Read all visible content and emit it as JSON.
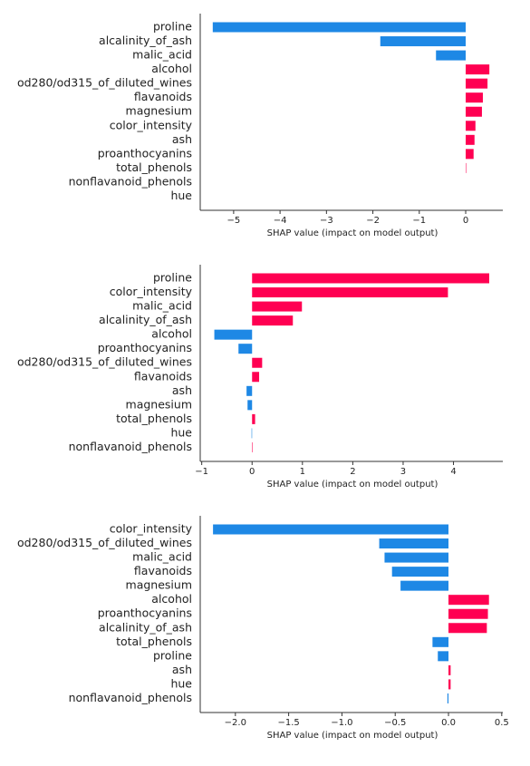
{
  "chart_data": [
    {
      "type": "bar",
      "orientation": "horizontal",
      "xlabel": "SHAP value (impact on model output)",
      "positive_color": "#ff0052",
      "negative_color": "#1e88e5",
      "categories": [
        "proline",
        "alcalinity_of_ash",
        "malic_acid",
        "alcohol",
        "od280/od315_of_diluted_wines",
        "flavanoids",
        "magnesium",
        "color_intensity",
        "ash",
        "proanthocyanins",
        "total_phenols",
        "nonflavanoid_phenols",
        "hue"
      ],
      "values": [
        -5.45,
        -1.84,
        -0.64,
        0.51,
        0.47,
        0.37,
        0.35,
        0.21,
        0.19,
        0.17,
        0.01,
        0,
        0
      ],
      "xlim": [
        -5.72,
        0.8
      ],
      "xticks": [
        {
          "value": -5,
          "label": "−5"
        },
        {
          "value": -4,
          "label": "−4"
        },
        {
          "value": -3,
          "label": "−3"
        },
        {
          "value": -2,
          "label": "−2"
        },
        {
          "value": -1,
          "label": "−1"
        },
        0
      ]
    },
    {
      "type": "bar",
      "orientation": "horizontal",
      "xlabel": "SHAP value (impact on model output)",
      "positive_color": "#ff0052",
      "negative_color": "#1e88e5",
      "categories": [
        "proline",
        "color_intensity",
        "malic_acid",
        "alcalinity_of_ash",
        "alcohol",
        "proanthocyanins",
        "od280/od315_of_diluted_wines",
        "flavanoids",
        "ash",
        "magnesium",
        "total_phenols",
        "hue",
        "nonflavanoid_phenols"
      ],
      "values": [
        4.71,
        3.89,
        0.99,
        0.81,
        -0.75,
        -0.27,
        0.2,
        0.14,
        -0.11,
        -0.09,
        0.06,
        -0.01,
        0.01
      ],
      "xlim": [
        -1.03,
        4.98
      ],
      "xticks": [
        {
          "value": -1,
          "label": "−1"
        },
        0,
        1,
        2,
        3,
        4
      ]
    },
    {
      "type": "bar",
      "orientation": "horizontal",
      "xlabel": "SHAP value (impact on model output)",
      "positive_color": "#ff0052",
      "negative_color": "#1e88e5",
      "categories": [
        "color_intensity",
        "od280/od315_of_diluted_wines",
        "malic_acid",
        "flavanoids",
        "magnesium",
        "alcohol",
        "proanthocyanins",
        "alcalinity_of_ash",
        "total_phenols",
        "proline",
        "ash",
        "hue",
        "nonflavanoid_phenols"
      ],
      "values": [
        -2.21,
        -0.65,
        -0.6,
        -0.53,
        -0.45,
        0.38,
        0.37,
        0.36,
        -0.15,
        -0.1,
        0.02,
        0.02,
        -0.01
      ],
      "xlim": [
        -2.33,
        0.51
      ],
      "xticks": [
        {
          "value": -2,
          "label": "−2.0"
        },
        {
          "value": -1.5,
          "label": "−1.5"
        },
        {
          "value": -1,
          "label": "−1.0"
        },
        {
          "value": -0.5,
          "label": "−0.5"
        },
        {
          "value": 0,
          "label": "0.0"
        },
        0.5
      ]
    }
  ]
}
